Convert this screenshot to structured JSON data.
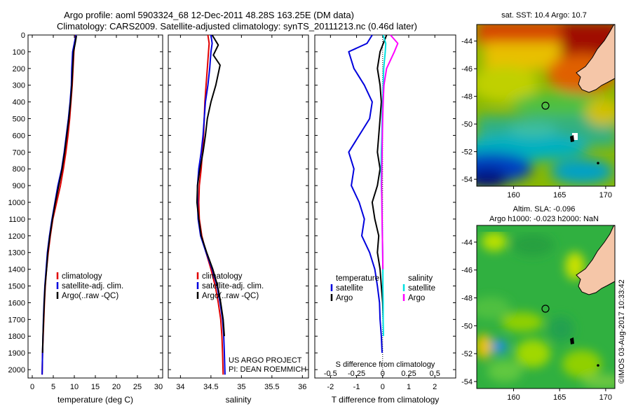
{
  "header": {
    "title_line1": "Argo profile: aoml 5903324_68 12-Dec-2011 48.28S 163.25E (DM data)",
    "title_line2": "Climatology: CARS2009. Satellite-adjusted climatology: synTS_20111213.nc (0.46d later)"
  },
  "colors": {
    "climatology": "#e00000",
    "satellite": "#0000dd",
    "argo": "#000000",
    "salinity_satellite": "#00e0e0",
    "salinity_argo": "#ff00ff",
    "land": "#f5c6a8"
  },
  "chart_data": [
    {
      "id": "temperature",
      "type": "line",
      "xlabel": "temperature (deg C)",
      "xlim": [
        -1,
        31
      ],
      "xticks": [
        0,
        5,
        10,
        15,
        20,
        25,
        30
      ],
      "ylim": [
        2050,
        0
      ],
      "yticks": [
        0,
        100,
        200,
        300,
        400,
        500,
        600,
        700,
        800,
        900,
        1000,
        1100,
        1200,
        1300,
        1400,
        1500,
        1600,
        1700,
        1800,
        1900,
        2000
      ],
      "legend": [
        "climatology",
        "satellite-adj. clim.",
        "Argo(..raw -QC)"
      ],
      "series": [
        {
          "name": "climatology",
          "color": "#e00000",
          "x": [
            10.3,
            10.1,
            9.9,
            9.7,
            9.5,
            9.2,
            8.9,
            8.5,
            8.0,
            7.4,
            6.7,
            5.8,
            4.9,
            4.3,
            3.8,
            3.4,
            3.1,
            2.9,
            2.75,
            2.6,
            2.45,
            2.35
          ],
          "y": [
            0,
            50,
            100,
            200,
            300,
            400,
            500,
            600,
            700,
            800,
            900,
            1000,
            1100,
            1200,
            1300,
            1400,
            1500,
            1600,
            1700,
            1800,
            1900,
            2030
          ]
        },
        {
          "name": "satellite-adj. clim.",
          "color": "#0000dd",
          "x": [
            10.4,
            10.0,
            9.6,
            9.4,
            9.3,
            9.0,
            8.6,
            8.1,
            7.6,
            7.0,
            6.1,
            5.4,
            4.7,
            4.1,
            3.6,
            3.3,
            3.0,
            2.8,
            2.65,
            2.55,
            2.45,
            2.35
          ],
          "y": [
            0,
            50,
            100,
            200,
            300,
            400,
            500,
            600,
            700,
            800,
            900,
            1000,
            1100,
            1200,
            1300,
            1400,
            1500,
            1600,
            1700,
            1800,
            1900,
            2030
          ]
        },
        {
          "name": "Argo(..raw -QC)",
          "color": "#000000",
          "x": [
            10.5,
            10.2,
            9.8,
            9.6,
            9.4,
            9.1,
            8.7,
            8.2,
            7.7,
            7.1,
            6.3,
            5.5,
            4.8,
            4.2,
            3.7,
            3.4,
            3.05,
            2.85,
            2.7,
            2.55,
            2.45
          ],
          "y": [
            5,
            50,
            100,
            200,
            300,
            400,
            500,
            600,
            700,
            800,
            900,
            1000,
            1100,
            1200,
            1300,
            1400,
            1500,
            1600,
            1700,
            1800,
            1900
          ]
        }
      ]
    },
    {
      "id": "salinity",
      "type": "line",
      "xlabel": "salinity",
      "xlim": [
        33.8,
        36.1
      ],
      "xticks": [
        34,
        34.5,
        35,
        35.5,
        36
      ],
      "ylim": [
        2050,
        0
      ],
      "legend": [
        "climatology",
        "satellite-adj. clim.",
        "Argo(..raw -QC)"
      ],
      "annotation": [
        "US ARGO PROJECT",
        "PI: DEAN ROEMMICH"
      ],
      "series": [
        {
          "name": "climatology",
          "color": "#e00000",
          "x": [
            34.45,
            34.47,
            34.46,
            34.44,
            34.42,
            34.4,
            34.39,
            34.38,
            34.36,
            34.34,
            34.31,
            34.3,
            34.31,
            34.35,
            34.42,
            34.5,
            34.57,
            34.62,
            34.66,
            34.68,
            34.69,
            34.7
          ],
          "y": [
            0,
            50,
            100,
            200,
            300,
            400,
            500,
            600,
            700,
            800,
            900,
            1000,
            1100,
            1200,
            1300,
            1400,
            1500,
            1600,
            1700,
            1800,
            1900,
            2030
          ]
        },
        {
          "name": "satellite-adj. clim.",
          "color": "#0000dd",
          "x": [
            34.5,
            34.52,
            34.5,
            34.48,
            34.45,
            34.41,
            34.39,
            34.37,
            34.34,
            34.3,
            34.28,
            34.28,
            34.29,
            34.33,
            34.42,
            34.52,
            34.6,
            34.65,
            34.69,
            34.71,
            34.72,
            34.73
          ],
          "y": [
            0,
            50,
            100,
            200,
            300,
            400,
            500,
            600,
            700,
            800,
            900,
            1000,
            1100,
            1200,
            1300,
            1400,
            1500,
            1600,
            1700,
            1800,
            1900,
            2030
          ]
        },
        {
          "name": "Argo(..raw -QC)",
          "color": "#000000",
          "x": [
            34.52,
            34.62,
            34.54,
            34.65,
            34.58,
            34.5,
            34.44,
            34.41,
            34.37,
            34.32,
            34.28,
            34.27,
            34.3,
            34.34,
            34.43,
            34.53,
            34.61,
            34.66,
            34.7,
            34.72
          ],
          "y": [
            0,
            60,
            120,
            180,
            300,
            400,
            500,
            600,
            700,
            800,
            900,
            1000,
            1100,
            1200,
            1300,
            1400,
            1500,
            1600,
            1700,
            1800
          ]
        }
      ]
    },
    {
      "id": "difference",
      "type": "line",
      "xlabel": "T difference from climatology",
      "x2label": "S difference from climatology",
      "xlim": [
        -2.6,
        2.8
      ],
      "xticks": [
        -2,
        -1,
        0,
        1,
        2
      ],
      "x2ticks": [
        "-0.5",
        "-0.25",
        "0",
        "0.25",
        "0.5"
      ],
      "ylim": [
        2050,
        0
      ],
      "legend_left_title": "temperature",
      "legend_right_title": "salinity",
      "legend_left": [
        "satellite",
        "Argo"
      ],
      "legend_right": [
        "satellite",
        "Argo"
      ],
      "series": [
        {
          "name": "temperature satellite",
          "color": "#0000dd",
          "x": [
            -0.4,
            -0.6,
            -1.3,
            -1.1,
            -0.7,
            -0.4,
            -0.5,
            -0.9,
            -1.3,
            -1.1,
            -1.2,
            -0.9,
            -0.7,
            -0.8,
            -0.5,
            -0.3,
            -0.2,
            -0.12,
            -0.1,
            -0.05,
            -0.02
          ],
          "y": [
            0,
            50,
            100,
            200,
            300,
            400,
            500,
            600,
            700,
            800,
            900,
            1000,
            1100,
            1200,
            1300,
            1400,
            1500,
            1600,
            1700,
            1800,
            1900
          ]
        },
        {
          "name": "temperature Argo",
          "color": "#000000",
          "x": [
            0.15,
            -0.1,
            -0.2,
            -0.1,
            -0.05,
            -0.1,
            -0.15,
            -0.2,
            -0.1,
            -0.2,
            -0.4,
            -0.3,
            -0.15,
            -0.2,
            -0.1,
            -0.05,
            0.0,
            0.02
          ],
          "y": [
            0,
            100,
            200,
            300,
            400,
            500,
            600,
            700,
            800,
            900,
            1000,
            1100,
            1200,
            1300,
            1400,
            1500,
            1600,
            1700
          ]
        },
        {
          "name": "salinity satellite",
          "color": "#00e0e0",
          "x": [
            0.02,
            0.12,
            0.1,
            0.04,
            0.02,
            0.0,
            -0.02,
            -0.03,
            -0.05,
            -0.06,
            -0.05,
            -0.03,
            -0.02,
            -0.01,
            0.0,
            0.01,
            0.01,
            0.02,
            0.02,
            0.03
          ],
          "y": [
            0,
            50,
            100,
            200,
            300,
            400,
            500,
            600,
            700,
            800,
            900,
            1000,
            1100,
            1200,
            1300,
            1400,
            1500,
            1600,
            1700,
            1800
          ]
        },
        {
          "name": "salinity Argo",
          "color": "#ff00ff",
          "x": [
            0.3,
            0.58,
            0.45,
            0.15,
            0.05,
            0.02,
            0.0,
            -0.01,
            -0.02,
            -0.03,
            -0.04,
            -0.03,
            -0.02,
            -0.01,
            0.0,
            0.01
          ],
          "y": [
            0,
            50,
            100,
            200,
            300,
            400,
            500,
            600,
            700,
            800,
            900,
            1000,
            1100,
            1200,
            1300,
            1400
          ]
        }
      ]
    },
    {
      "id": "sst_map",
      "type": "heatmap",
      "title": "sat. SST: 10.4  Argo: 10.7",
      "xticks": [
        160,
        165,
        170
      ],
      "yticks": [
        -44,
        -46,
        -48,
        -50,
        -52,
        -54
      ],
      "xlim": [
        156,
        171
      ],
      "ylim": [
        -54.5,
        -42.8
      ],
      "marker": {
        "lon": 163.25,
        "lat": -48.28
      }
    },
    {
      "id": "sla_map",
      "type": "heatmap",
      "title_line1": "Altim. SLA: -0.096",
      "title_line2": "Argo h1000: -0.023  h2000: NaN",
      "xticks": [
        160,
        165,
        170
      ],
      "yticks": [
        -44,
        -46,
        -48,
        -50,
        -52,
        -54
      ],
      "xlim": [
        156,
        171
      ],
      "ylim": [
        -54.5,
        -42.8
      ],
      "marker": {
        "lon": 163.25,
        "lat": -48.28
      }
    }
  ],
  "credit": "©IMOS 03-Aug-2017 10:33:42"
}
